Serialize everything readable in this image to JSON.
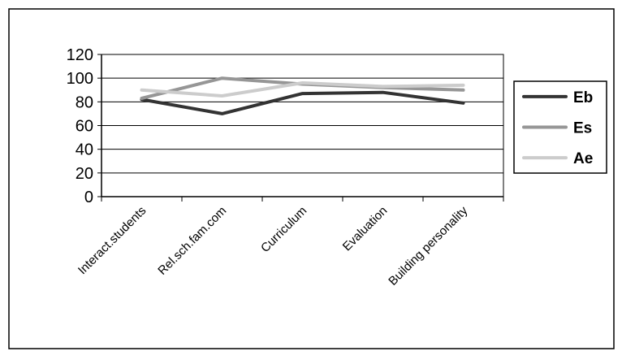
{
  "chart_data": {
    "type": "line",
    "title": "",
    "xlabel": "",
    "ylabel": "",
    "categories": [
      "Interact.students",
      "Rel.sch.fam.com",
      "Curriculum",
      "Evaluation",
      "Building personality"
    ],
    "ylim": [
      0,
      120
    ],
    "yticks": [
      0,
      20,
      40,
      60,
      80,
      100,
      120
    ],
    "y_tick_labels": [
      "0",
      "20",
      "40",
      "60",
      "80",
      "100",
      "120"
    ],
    "grid": true,
    "legend_position": "right",
    "series": [
      {
        "name": "Eb",
        "color": "#333333",
        "values": [
          82,
          70,
          87,
          88,
          79
        ]
      },
      {
        "name": "Es",
        "color": "#969696",
        "values": [
          83,
          100,
          95,
          92,
          90
        ]
      },
      {
        "name": "Ae",
        "color": "#cccccc",
        "values": [
          90,
          85,
          96,
          93,
          94
        ]
      }
    ]
  }
}
